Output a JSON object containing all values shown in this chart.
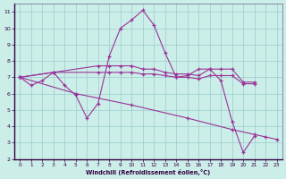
{
  "xlabel": "Windchill (Refroidissement éolien,°C)",
  "background_color": "#cceee8",
  "grid_color": "#99cccc",
  "line_color": "#993399",
  "xlim": [
    -0.5,
    23.5
  ],
  "ylim": [
    2,
    11.5
  ],
  "xticks": [
    0,
    1,
    2,
    3,
    4,
    5,
    6,
    7,
    8,
    9,
    10,
    11,
    12,
    13,
    14,
    15,
    16,
    17,
    18,
    19,
    20,
    21,
    22,
    23
  ],
  "yticks": [
    2,
    3,
    4,
    5,
    6,
    7,
    8,
    9,
    10,
    11
  ],
  "series": [
    {
      "x": [
        0,
        1,
        2,
        3,
        4,
        5,
        6,
        7,
        8,
        9,
        10,
        11,
        12,
        13,
        14,
        15,
        16,
        17,
        18,
        19,
        20,
        21,
        22
      ],
      "y": [
        7.0,
        6.5,
        6.8,
        7.3,
        6.5,
        5.9,
        4.5,
        5.4,
        8.3,
        10.0,
        10.5,
        11.1,
        10.2,
        8.5,
        7.0,
        7.1,
        7.5,
        7.5,
        6.8,
        4.3,
        2.4,
        3.4,
        null
      ]
    },
    {
      "x": [
        0,
        3,
        7,
        8,
        9,
        10,
        11,
        12,
        13,
        14,
        15,
        16,
        17,
        18,
        19,
        20,
        21
      ],
      "y": [
        7.0,
        7.3,
        7.7,
        7.7,
        7.7,
        7.7,
        7.5,
        7.5,
        7.3,
        7.2,
        7.2,
        7.1,
        7.5,
        7.5,
        7.5,
        6.7,
        6.7
      ]
    },
    {
      "x": [
        0,
        3,
        7,
        8,
        9,
        10,
        11,
        12,
        13,
        14,
        15,
        16,
        17,
        18,
        19,
        20,
        21
      ],
      "y": [
        7.0,
        7.3,
        7.3,
        7.3,
        7.3,
        7.3,
        7.2,
        7.2,
        7.1,
        7.0,
        7.0,
        6.9,
        7.1,
        7.1,
        7.1,
        6.6,
        6.6
      ]
    },
    {
      "x": [
        0,
        5,
        10,
        15,
        19,
        21,
        22,
        23
      ],
      "y": [
        7.0,
        6.0,
        5.3,
        4.5,
        3.8,
        3.5,
        3.35,
        3.2
      ]
    }
  ]
}
